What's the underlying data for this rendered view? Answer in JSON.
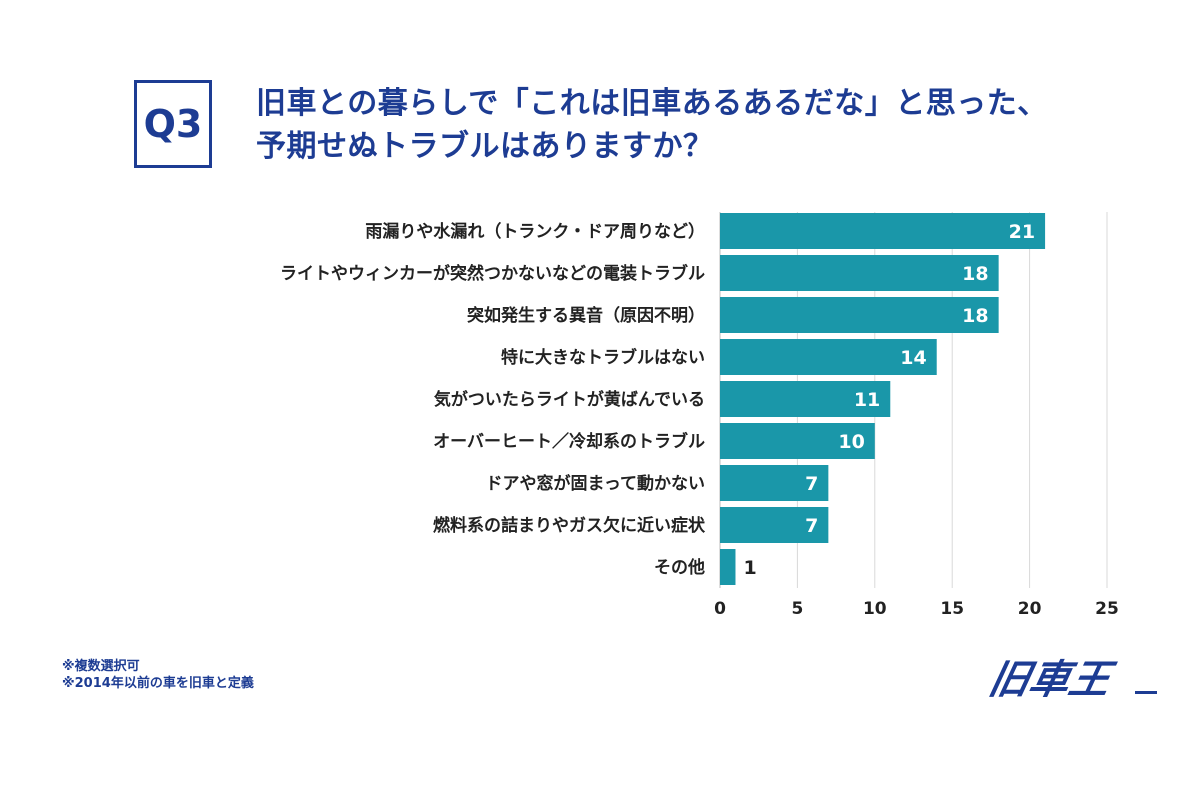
{
  "header": {
    "badge": "Q3",
    "title_line1": "旧車との暮らしで「これは旧車あるあるだな」と思った、",
    "title_line2": "予期せぬトラブルはありますか？"
  },
  "notes": [
    "※複数選択可",
    "※2014年以前の車を旧車と定義"
  ],
  "logo": {
    "text": "旧車王"
  },
  "colors": {
    "bar": "#1a97a9",
    "title": "#1d3c93",
    "grid": "#d9d9d9"
  },
  "chart_data": {
    "type": "bar",
    "orientation": "horizontal",
    "categories": [
      "雨漏りや水漏れ（トランク・ドア周りなど）",
      "ライトやウィンカーが突然つかないなどの電装トラブル",
      "突如発生する異音（原因不明）",
      "特に大きなトラブルはない",
      "気がついたらライトが黄ばんでいる",
      "オーバーヒート／冷却系のトラブル",
      "ドアや窓が固まって動かない",
      "燃料系の詰まりやガス欠に近い症状",
      "その他"
    ],
    "values": [
      21,
      18,
      18,
      14,
      11,
      10,
      7,
      7,
      1
    ],
    "xlim": [
      0,
      25
    ],
    "ticks": [
      "0",
      "5",
      "10",
      "15",
      "20",
      "25"
    ],
    "grid": true
  }
}
